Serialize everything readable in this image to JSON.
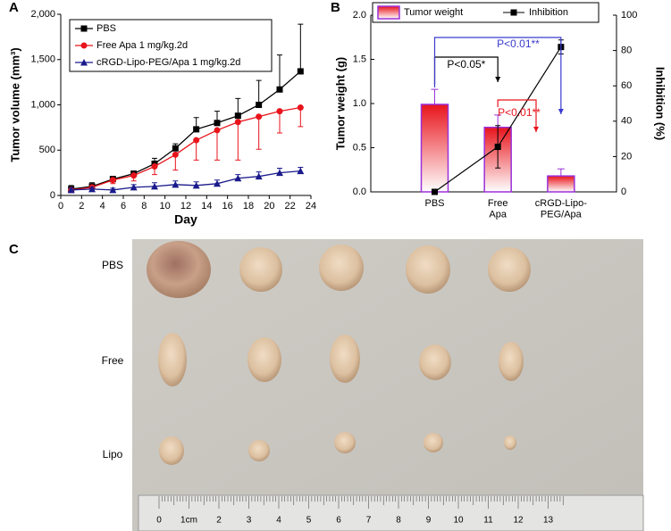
{
  "chart_data": [
    {
      "type": "line",
      "panel_label": "A",
      "ylabel": "Tumor volume (mm³)",
      "xlabel": "Day",
      "xlim": [
        0,
        24
      ],
      "xticks": [
        0,
        2,
        4,
        6,
        8,
        10,
        12,
        14,
        16,
        18,
        20,
        22,
        24
      ],
      "ylim": [
        0,
        2000
      ],
      "yticks": [
        0,
        500,
        {
          "value": 1000,
          "label": "1,000"
        },
        {
          "value": 1500,
          "label": "1,500"
        },
        {
          "value": 2000,
          "label": "2,000"
        }
      ],
      "x": [
        1,
        3,
        5,
        7,
        9,
        11,
        13,
        15,
        17,
        19,
        21,
        23
      ],
      "series": [
        {
          "name": "PBS",
          "color": "#000000",
          "marker": "square",
          "error_side": "up",
          "values": [
            70,
            100,
            180,
            240,
            350,
            520,
            730,
            800,
            880,
            1000,
            1170,
            1370
          ],
          "errors": [
            40,
            40,
            30,
            30,
            60,
            50,
            130,
            130,
            190,
            270,
            380,
            520
          ]
        },
        {
          "name": "Free Apa 1 mg/kg.2d",
          "color": "#e8141c",
          "marker": "circle",
          "error_side": "down",
          "values": [
            60,
            90,
            170,
            220,
            320,
            450,
            610,
            720,
            810,
            870,
            930,
            970
          ],
          "errors": [
            30,
            40,
            40,
            60,
            90,
            170,
            220,
            330,
            420,
            360,
            240,
            210
          ]
        },
        {
          "name": "cRGD-Lipo-PEG/Apa 1 mg/kg.2d",
          "color": "#1a1a8c",
          "marker": "triangle",
          "error_side": "up",
          "values": [
            60,
            70,
            60,
            90,
            100,
            120,
            110,
            130,
            190,
            210,
            250,
            270
          ],
          "errors": [
            20,
            20,
            20,
            30,
            40,
            40,
            40,
            40,
            40,
            50,
            50,
            40
          ]
        }
      ]
    },
    {
      "type": "bar",
      "panel_label": "B",
      "ylabel": "Tumor weight (g)",
      "y2label": "Inhibition (%)",
      "categories": [
        "PBS",
        "Free\nApa",
        "cRGD-Lipo-\nPEG/Apa"
      ],
      "ylim": [
        0,
        2
      ],
      "yticks": [
        {
          "value": 0,
          "label": "0.0"
        },
        0.5,
        {
          "value": 1,
          "label": "1.0"
        },
        1.5,
        {
          "value": 2,
          "label": "2.0"
        }
      ],
      "y2lim": [
        0,
        100
      ],
      "y2ticks": [
        0,
        20,
        40,
        60,
        80,
        100
      ],
      "series": [
        {
          "name": "Tumor weight",
          "type": "bar",
          "color": "#e8141c",
          "edge_color": "#9b30d9",
          "values": [
            0.99,
            0.73,
            0.18
          ],
          "errors": [
            0.17,
            0.14,
            0.08
          ]
        },
        {
          "name": "Inhibition",
          "type": "line",
          "axis": "y2",
          "color": "#000000",
          "values": [
            0,
            25.5,
            82
          ],
          "errors": [
            0,
            12,
            4
          ]
        }
      ],
      "annotations": [
        {
          "text": "P<0.05*",
          "color": "#000000"
        },
        {
          "text": "P<0.01**",
          "color": "#e8141c"
        },
        {
          "text": "P<0.01**",
          "color": "#3a3ad0"
        }
      ]
    }
  ],
  "photo": {
    "panel_label": "C",
    "row_labels": [
      "PBS",
      "Free",
      "Lipo"
    ],
    "ruler_labels": [
      "0",
      "1cm",
      "2",
      "3",
      "4",
      "5",
      "6",
      "7",
      "8",
      "9",
      "10",
      "11",
      "12",
      "13"
    ]
  }
}
